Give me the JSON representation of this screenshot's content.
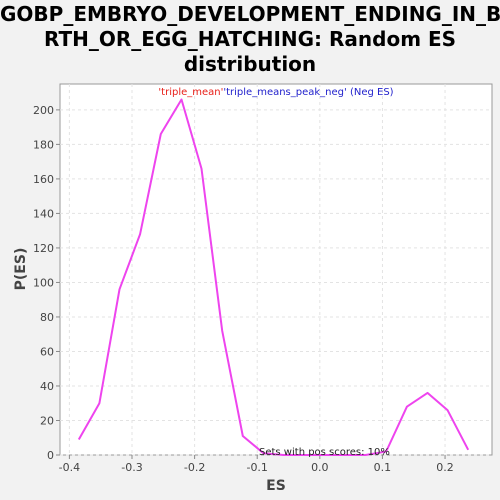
{
  "chart_data": {
    "type": "line",
    "title_lines": [
      "GOBP_EMBRYO_DEVELOPMENT_ENDING_IN_BI",
      "RTH_OR_EGG_HATCHING: Random ES",
      "distribution"
    ],
    "xlabel": "ES",
    "ylabel": "P(ES)",
    "xlim": [
      -0.415,
      0.275
    ],
    "ylim": [
      0,
      215
    ],
    "xticks": [
      -0.4,
      -0.3,
      -0.2,
      -0.1,
      0.0,
      0.1,
      0.2
    ],
    "xtick_labels": [
      "-0.4",
      "-0.3",
      "-0.2",
      "-0.1",
      "0.0",
      "0.1",
      "0.2"
    ],
    "yticks": [
      0,
      20,
      40,
      60,
      80,
      100,
      120,
      140,
      160,
      180,
      200
    ],
    "yticks_labels": [
      "0",
      "20",
      "40",
      "60",
      "80",
      "100",
      "120",
      "140",
      "160",
      "180",
      "200"
    ],
    "grid": true,
    "legend": {
      "part1": "'triple_mean'",
      "part2": "'triple_means_peak_neg'",
      "part3": " (Neg ES)",
      "color1": "#e8201a",
      "color2": "#2222cc"
    },
    "annotation": "Sets with pos scores: 10%",
    "series": [
      {
        "color": "#ee44ee",
        "x": [
          -0.385,
          -0.352,
          -0.32,
          -0.287,
          -0.254,
          -0.221,
          -0.189,
          -0.156,
          -0.123,
          -0.09,
          -0.058,
          -0.025,
          0.008,
          0.041,
          0.073,
          0.106,
          0.139,
          0.172,
          0.204,
          0.237
        ],
        "y": [
          9,
          30,
          96,
          128,
          186,
          206,
          166,
          72,
          11,
          1,
          0,
          0,
          0,
          0,
          0,
          2,
          28,
          36,
          26,
          3
        ]
      }
    ]
  }
}
